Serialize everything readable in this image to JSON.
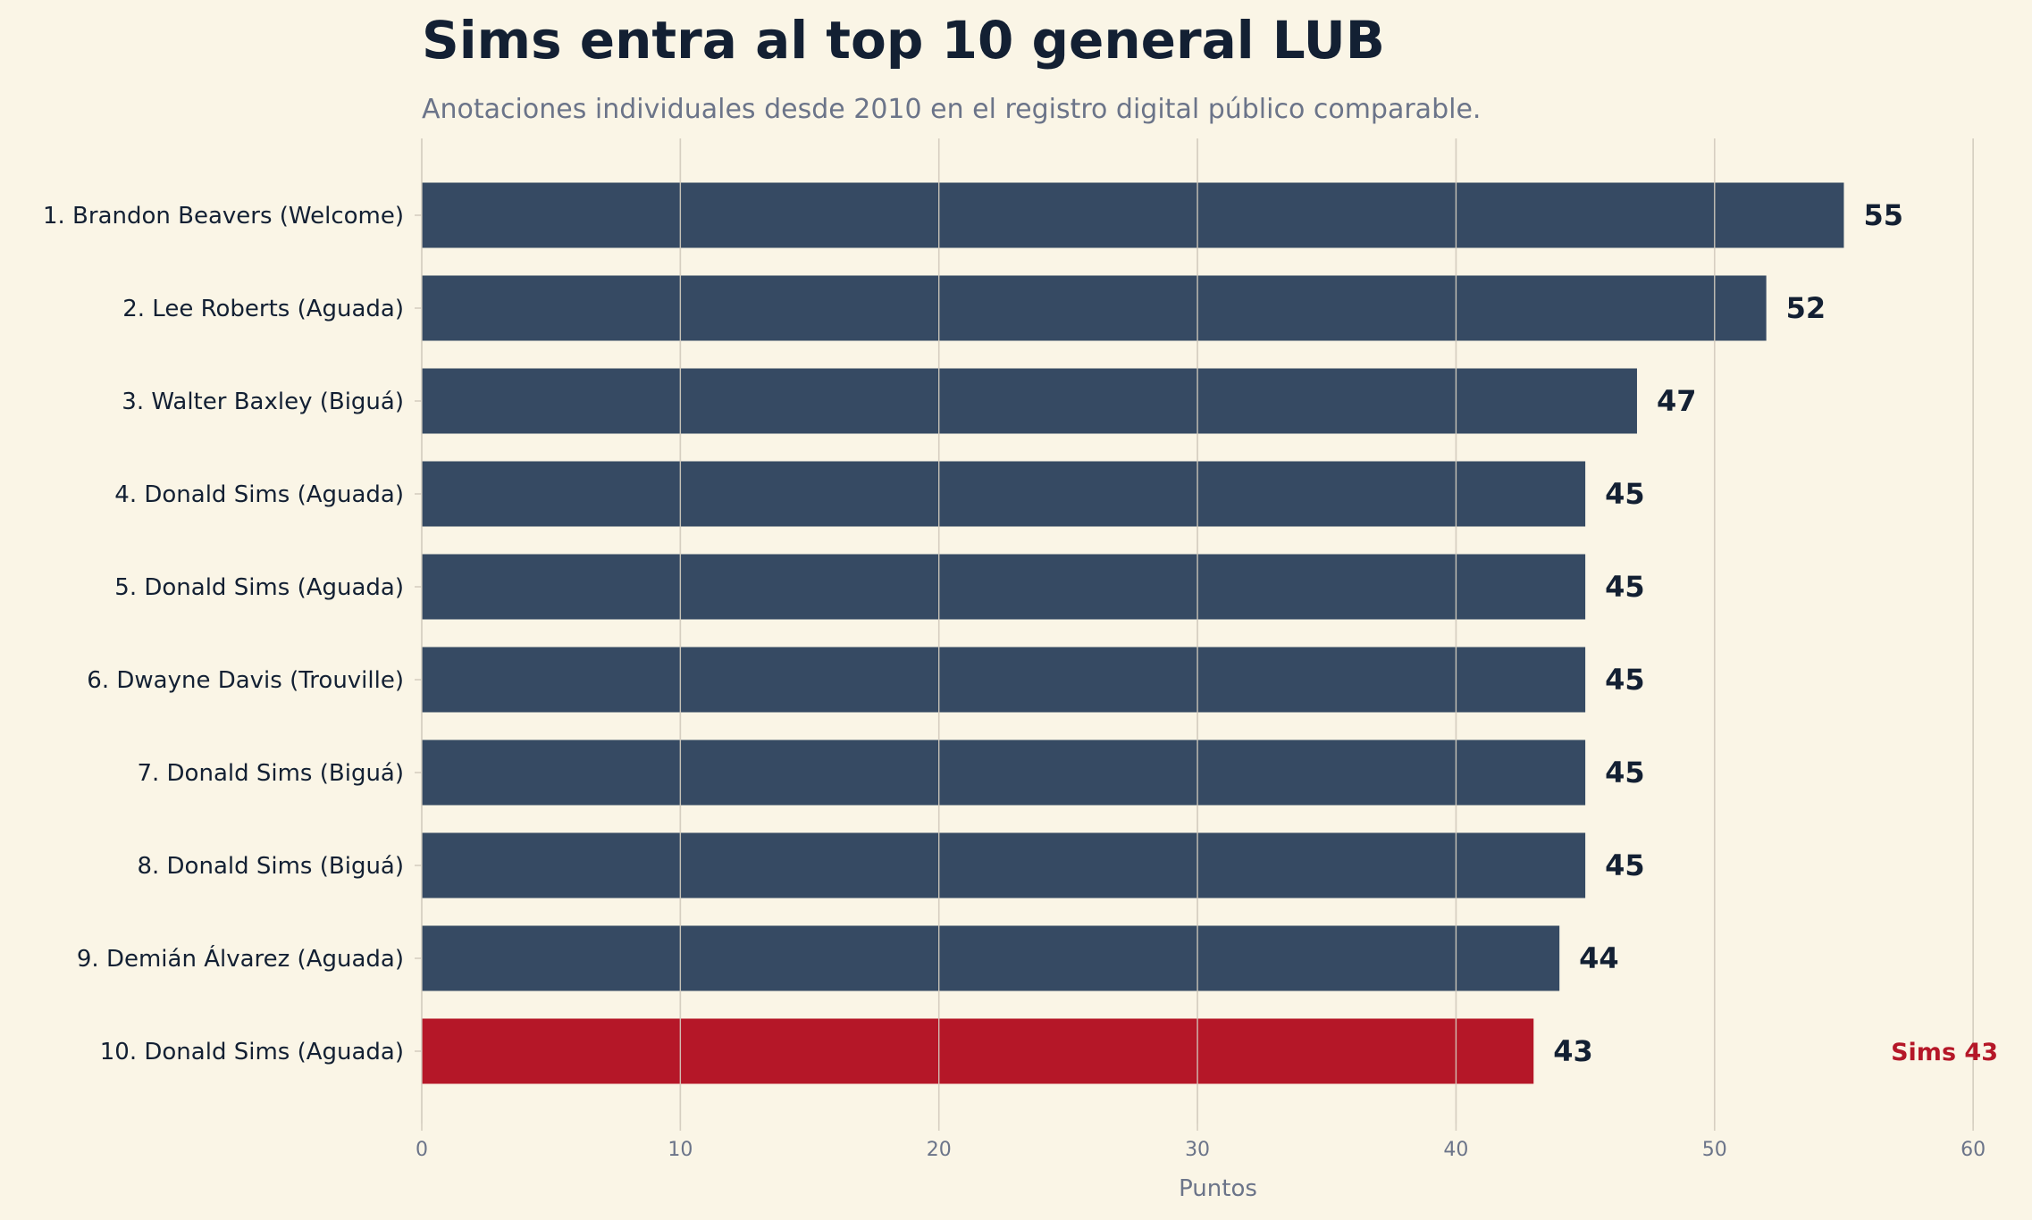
{
  "colors": {
    "background": "#faf5e6",
    "bar": "#364a63",
    "highlight": "#b51728",
    "text": "#132033",
    "muted": "#6b7489",
    "grid": "#d6cfc1"
  },
  "chart_data": {
    "type": "bar",
    "orientation": "horizontal",
    "title": "Sims entra al top 10 general LUB",
    "subtitle": "Anotaciones individuales desde 2010 en el registro digital público comparable.",
    "xlabel": "Puntos",
    "ylabel": "",
    "xlim": [
      0,
      62
    ],
    "xticks": [
      0,
      10,
      20,
      30,
      40,
      50,
      60
    ],
    "grid": "vertical",
    "categories": [
      "1. Brandon Beavers (Welcome)",
      "2. Lee Roberts (Aguada)",
      "3. Walter Baxley (Biguá)",
      "4. Donald Sims (Aguada)",
      "5. Donald Sims (Aguada)",
      "6. Dwayne Davis (Trouville)",
      "7. Donald Sims (Biguá)",
      "8. Donald Sims (Biguá)",
      "9. Demián Álvarez (Aguada)",
      "10. Donald Sims (Aguada)"
    ],
    "values": [
      55,
      52,
      47,
      45,
      45,
      45,
      45,
      45,
      44,
      43
    ],
    "highlight_index": 9,
    "annotation": {
      "text": "Sims 43",
      "row_index": 9,
      "placement": "right"
    }
  }
}
